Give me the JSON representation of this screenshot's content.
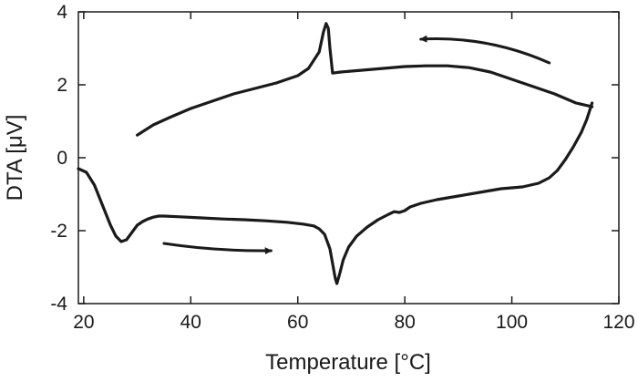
{
  "chart_data": {
    "type": "line",
    "xlabel": "Temperature [°C]",
    "ylabel": "DTA [μV]",
    "xlim": [
      19,
      120
    ],
    "ylim": [
      -4,
      4
    ],
    "xticks": [
      20,
      40,
      60,
      80,
      100,
      120
    ],
    "yticks": [
      -4,
      -2,
      0,
      2,
      4
    ],
    "grid": false,
    "legend": "none",
    "series": [
      {
        "direction": "heating",
        "x": [
          19,
          20.5,
          22,
          23.5,
          25,
          26,
          27,
          28,
          29,
          30,
          31,
          32,
          33,
          34,
          35,
          38,
          42,
          46,
          50,
          54,
          58,
          61,
          63,
          64,
          65,
          66,
          66.5,
          67,
          67.3,
          67.8,
          68.5,
          69.5,
          71,
          73,
          75,
          77,
          78,
          79,
          80,
          81,
          83,
          86,
          90,
          94,
          98,
          102,
          105,
          107,
          108.5,
          110,
          111.5,
          113,
          114,
          115
        ],
        "y": [
          -0.3,
          -0.4,
          -0.75,
          -1.3,
          -1.85,
          -2.15,
          -2.3,
          -2.25,
          -2.05,
          -1.85,
          -1.75,
          -1.68,
          -1.63,
          -1.6,
          -1.6,
          -1.62,
          -1.65,
          -1.68,
          -1.7,
          -1.73,
          -1.77,
          -1.82,
          -1.87,
          -1.95,
          -2.1,
          -2.5,
          -2.9,
          -3.3,
          -3.45,
          -3.2,
          -2.8,
          -2.45,
          -2.15,
          -1.9,
          -1.7,
          -1.55,
          -1.48,
          -1.5,
          -1.45,
          -1.35,
          -1.25,
          -1.15,
          -1.05,
          -0.95,
          -0.85,
          -0.8,
          -0.7,
          -0.55,
          -0.35,
          -0.05,
          0.3,
          0.7,
          1.05,
          1.5
        ]
      },
      {
        "direction": "cooling",
        "x": [
          115,
          112,
          108,
          104,
          100,
          96,
          92,
          88,
          84,
          80,
          76,
          72,
          68,
          66.5,
          66,
          65.7,
          65.3,
          64.8,
          64,
          62,
          60,
          56,
          52,
          48,
          44,
          40,
          36,
          33,
          30
        ],
        "y": [
          1.4,
          1.5,
          1.75,
          1.95,
          2.15,
          2.35,
          2.47,
          2.52,
          2.52,
          2.5,
          2.45,
          2.4,
          2.35,
          2.32,
          3.0,
          3.55,
          3.68,
          3.45,
          2.9,
          2.45,
          2.25,
          2.05,
          1.9,
          1.75,
          1.55,
          1.35,
          1.1,
          0.9,
          0.62
        ]
      }
    ],
    "annotations": [
      {
        "type": "arrow",
        "meaning": "cooling direction",
        "from": [
          107,
          2.6
        ],
        "to": [
          83,
          3.25
        ]
      },
      {
        "type": "arrow",
        "meaning": "heating direction",
        "from": [
          35,
          -2.35
        ],
        "to": [
          55,
          -2.55
        ]
      }
    ]
  }
}
